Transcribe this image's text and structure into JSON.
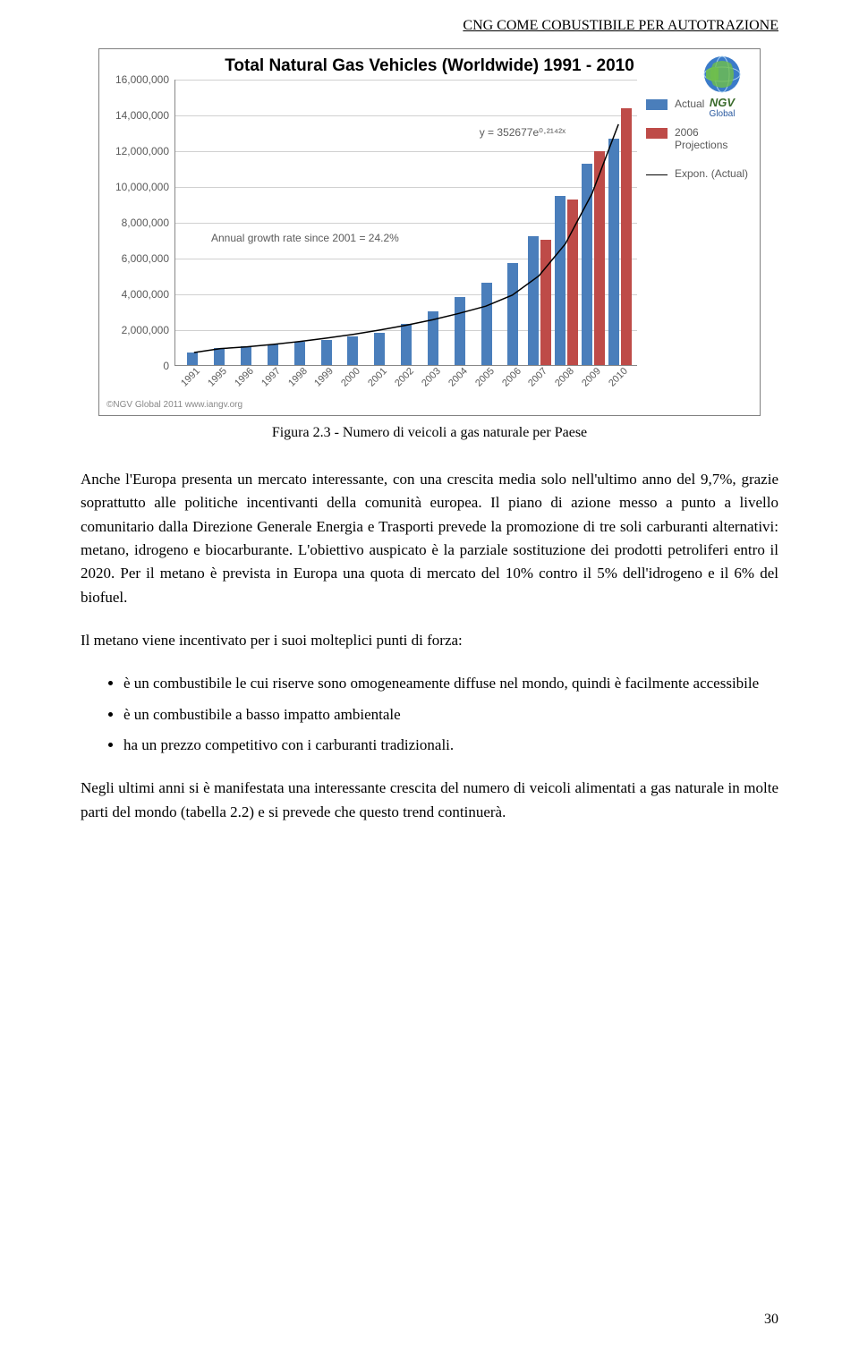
{
  "header": {
    "text": "CNG COME COBUSTIBILE PER AUTOTRAZIONE"
  },
  "chart": {
    "type": "bar",
    "title": "Total Natural Gas Vehicles (Worldwide) 1991 - 2010",
    "ylim": [
      0,
      16000000
    ],
    "ytick_step": 2000000,
    "ytick_labels": [
      "0",
      "2,000,000",
      "4,000,000",
      "6,000,000",
      "8,000,000",
      "10,000,000",
      "12,000,000",
      "14,000,000",
      "16,000,000"
    ],
    "categories": [
      "1991",
      "1995",
      "1996",
      "1997",
      "1998",
      "1999",
      "2000",
      "2001",
      "2002",
      "2003",
      "2004",
      "2005",
      "2006",
      "2007",
      "2008",
      "2009",
      "2010"
    ],
    "actual_values": [
      700000,
      950000,
      1050000,
      1150000,
      1300000,
      1400000,
      1600000,
      1800000,
      2300000,
      3000000,
      3800000,
      4600000,
      5700000,
      7200000,
      9500000,
      11300000,
      12700000
    ],
    "projection_values": [
      null,
      null,
      null,
      null,
      null,
      null,
      null,
      null,
      null,
      null,
      null,
      null,
      null,
      7000000,
      9300000,
      12000000,
      14400000
    ],
    "trend_points": [
      700000,
      920000,
      1020000,
      1160000,
      1320000,
      1510000,
      1720000,
      1960000,
      2230000,
      2540000,
      2900000,
      3300000,
      3920000,
      5000000,
      6800000,
      9600000,
      13500000
    ],
    "equation": "y = 352677e⁰·²¹⁴²ˣ",
    "growth_note": "Annual growth rate since 2001 = 24.2%",
    "legend": {
      "actual": "Actual",
      "projection": "2006 Projections",
      "expon": "Expon. (Actual)"
    },
    "logo": {
      "name": "NGV",
      "sub": "Global"
    },
    "copyright": "©NGV Global 2011 www.iangv.org",
    "colors": {
      "actual": "#4a7ebb",
      "projection": "#be4b48",
      "trend": "#000000",
      "grid": "#d0d0d0",
      "axis": "#888888",
      "title": "#000000",
      "labels": "#5a5a5a",
      "background": "#ffffff",
      "border": "#808080"
    },
    "fonts": {
      "title_size": 19,
      "title_weight": "bold",
      "label_size": 12,
      "xlabel_size": 11
    }
  },
  "caption": "Figura 2.3 - Numero di veicoli a gas naturale per Paese",
  "paragraphs": {
    "p1": "Anche l'Europa presenta un mercato interessante, con una crescita media solo nell'ultimo anno del 9,7%, grazie soprattutto alle politiche incentivanti della comunità europea. Il piano di azione messo a punto a livello comunitario dalla Direzione Generale Energia e Trasporti prevede la promozione di tre soli carburanti alternativi: metano, idrogeno e biocarburante. L'obiettivo auspicato è la parziale sostituzione dei prodotti petroliferi entro il 2020. Per il metano è prevista in Europa una quota di mercato del 10% contro il 5% dell'idrogeno e il 6% del biofuel.",
    "p2": "Il metano viene incentivato per i suoi molteplici punti di forza:",
    "p3": "Negli ultimi anni si è manifestata una interessante crescita del numero di veicoli alimentati a gas naturale in molte parti del mondo (tabella 2.2) e si prevede che questo trend continuerà."
  },
  "bullets": [
    "è un combustibile le cui riserve sono omogeneamente diffuse nel mondo, quindi è facilmente accessibile",
    "è un combustibile a basso impatto ambientale",
    "ha un prezzo competitivo con i carburanti tradizionali."
  ],
  "page_number": "30"
}
